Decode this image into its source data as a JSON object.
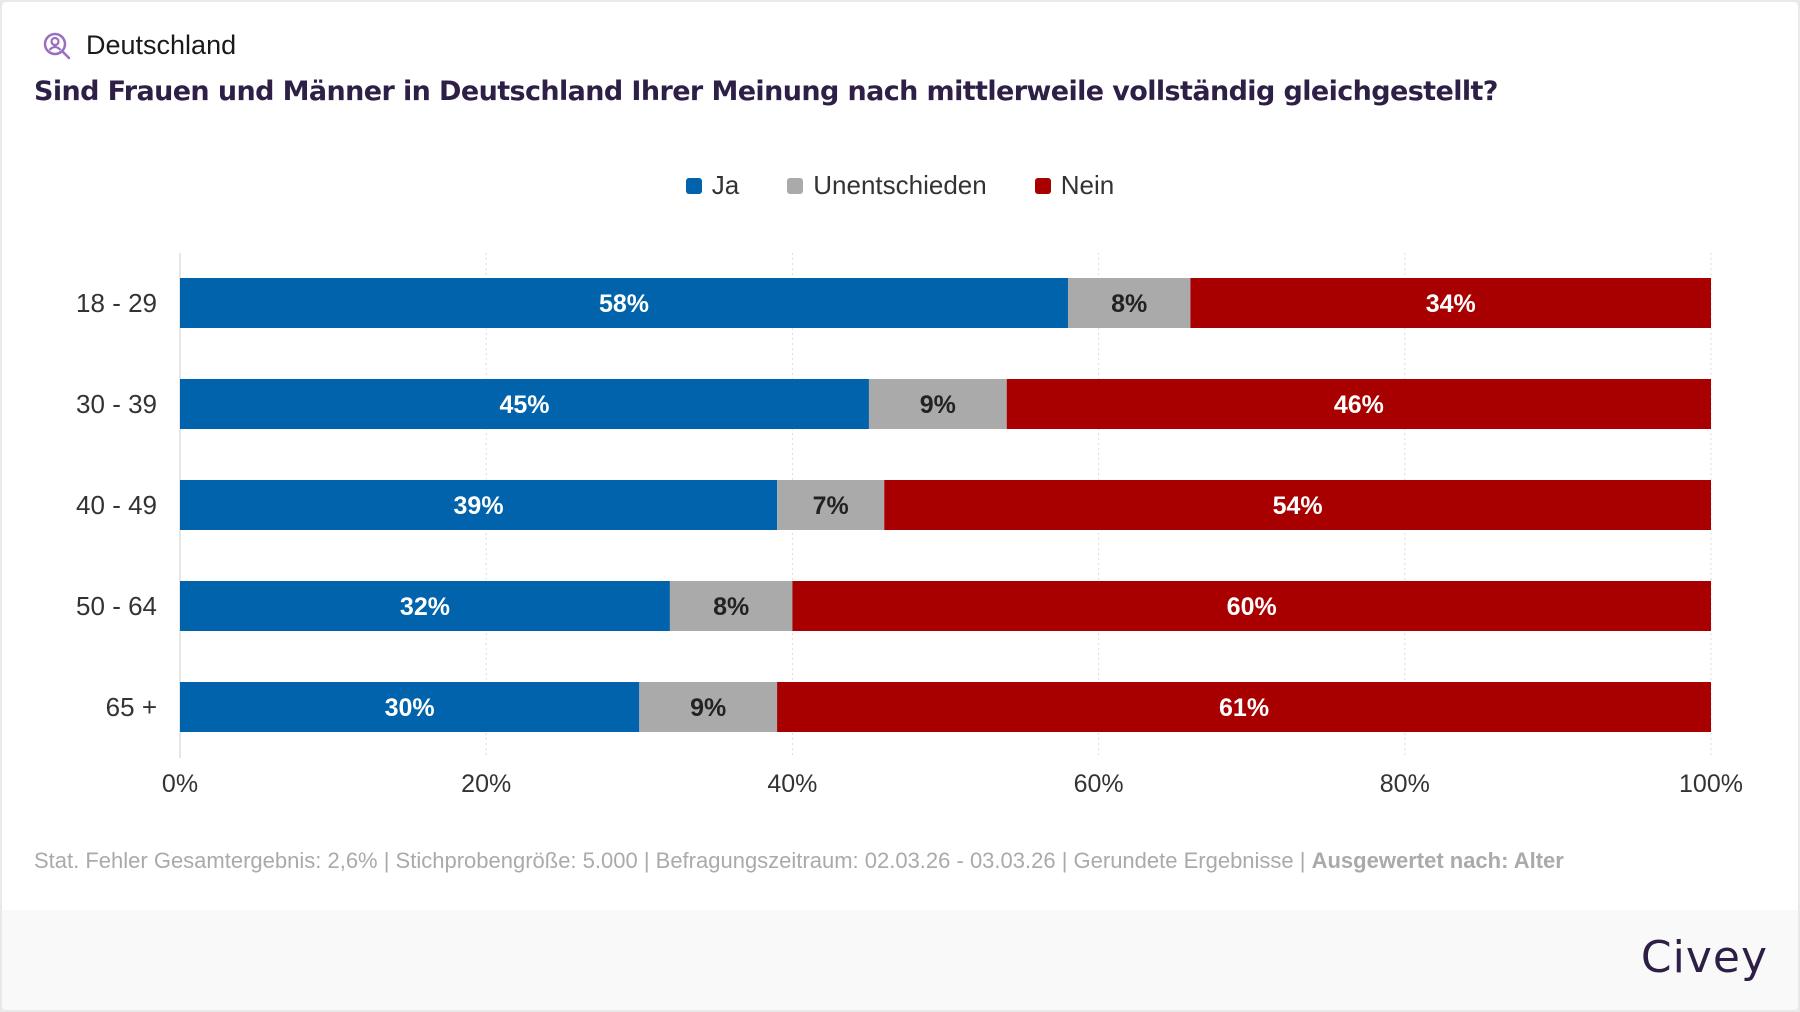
{
  "header": {
    "region": "Deutschland",
    "region_icon": "location-search-icon",
    "title": "Sind Frauen und Männer in Deutschland Ihrer Meinung nach mittlerweile vollständig gleichgestellt?"
  },
  "chart_data": {
    "type": "bar",
    "orientation": "horizontal-stacked-100",
    "categories": [
      "18 - 29",
      "30 - 39",
      "40 - 49",
      "50 - 64",
      "65 +"
    ],
    "series": [
      {
        "name": "Ja",
        "color": "#0063ab",
        "values": [
          58,
          45,
          39,
          32,
          30
        ]
      },
      {
        "name": "Unentschieden",
        "color": "#aaaaaa",
        "values": [
          8,
          9,
          7,
          8,
          9
        ]
      },
      {
        "name": "Nein",
        "color": "#a80000",
        "values": [
          34,
          46,
          54,
          60,
          61
        ]
      }
    ],
    "xlim": [
      0,
      100
    ],
    "xticks": [
      "0%",
      "20%",
      "40%",
      "60%",
      "80%",
      "100%"
    ],
    "grid": true,
    "legend": "top-center"
  },
  "footnote": {
    "text": "Stat. Fehler Gesamtergebnis: 2,6% | Stichprobengröße: 5.000 | Befragungszeitraum: 02.03.26 - 03.03.26 | Gerundete Ergebnisse | ",
    "bold": "Ausgewertet nach: Alter"
  },
  "brand": "Civey"
}
